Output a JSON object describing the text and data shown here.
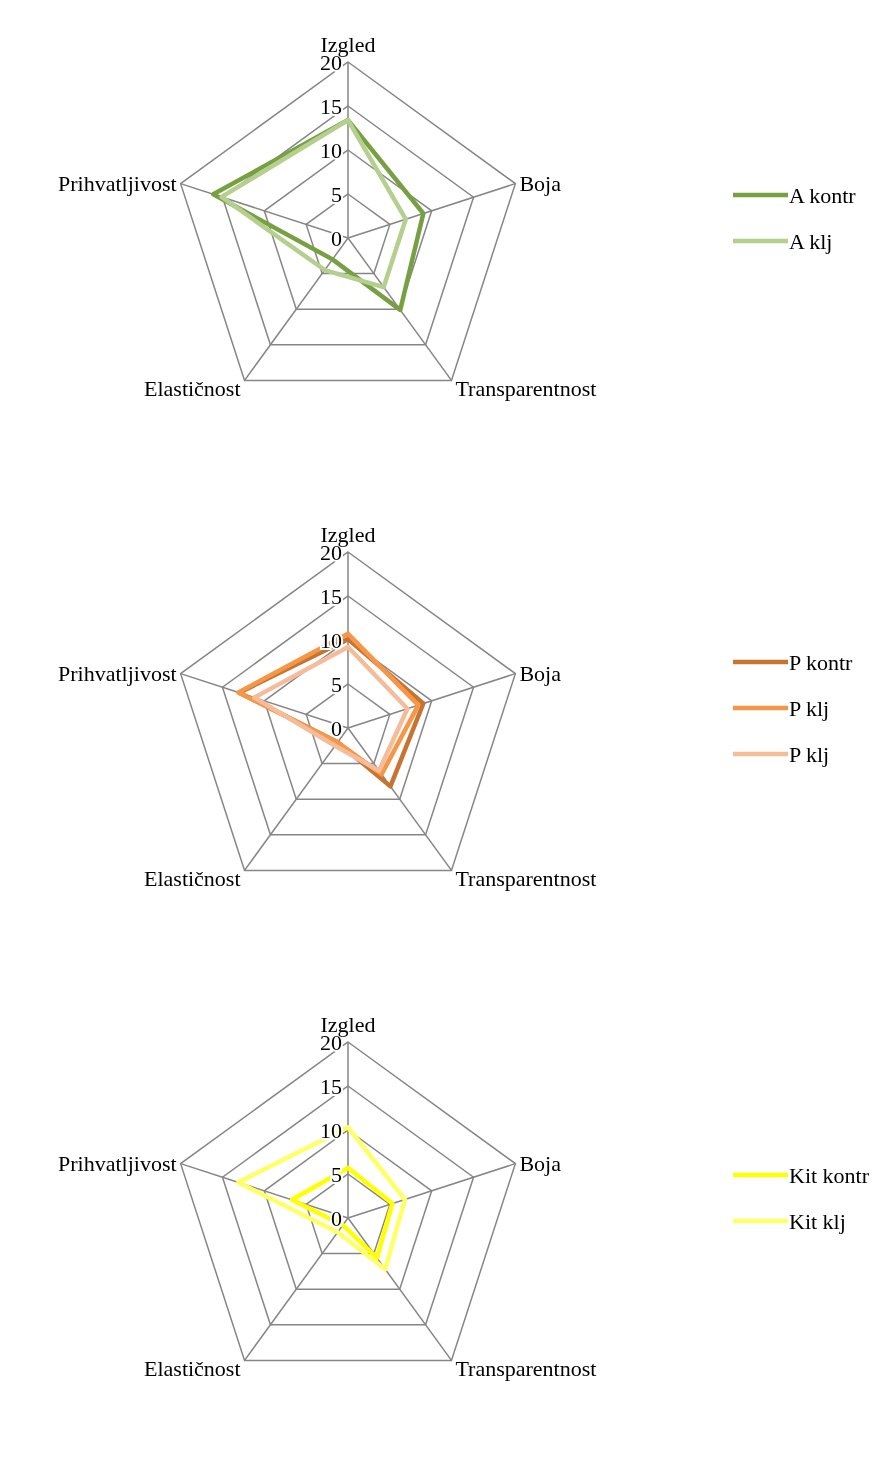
{
  "chart_data": [
    {
      "type": "radar",
      "categories": [
        "Izgled",
        "Boja",
        "Transparentnost",
        "Elastičnost",
        "Prihvatljivost"
      ],
      "ylim": [
        0,
        20
      ],
      "yticks": [
        0,
        5,
        10,
        15,
        20
      ],
      "grid": true,
      "legend": "right",
      "series": [
        {
          "name": "A kontr",
          "color": "#77a043",
          "values": [
            13.4,
            9,
            10.1,
            3,
            16.1
          ]
        },
        {
          "name": "A klj",
          "color": "#b5cf8e",
          "values": [
            13.4,
            6.9,
            6.9,
            4.5,
            15.1
          ]
        }
      ]
    },
    {
      "type": "radar",
      "categories": [
        "Izgled",
        "Boja",
        "Transparentnost",
        "Elastičnost",
        "Prihvatljivost"
      ],
      "ylim": [
        0,
        20
      ],
      "yticks": [
        0,
        5,
        10,
        15,
        20
      ],
      "grid": true,
      "legend": "right",
      "series": [
        {
          "name": "P kontr",
          "color": "#c77332",
          "values": [
            10.1,
            9,
            8.2,
            2,
            13
          ]
        },
        {
          "name": "P klj",
          "color": "#f79646",
          "values": [
            10.7,
            8.4,
            6.5,
            2,
            13.1
          ]
        },
        {
          "name": "P klj",
          "color": "#f5bc9a",
          "values": [
            9.2,
            7.1,
            6,
            2.5,
            11.2
          ]
        }
      ]
    },
    {
      "type": "radar",
      "categories": [
        "Izgled",
        "Boja",
        "Transparentnost",
        "Elastičnost",
        "Prihvatljivost"
      ],
      "ylim": [
        0,
        20
      ],
      "yticks": [
        0,
        5,
        10,
        15,
        20
      ],
      "grid": true,
      "legend": "right",
      "series": [
        {
          "name": "Kit kontr",
          "color": "#ffff00",
          "values": [
            5.7,
            5.3,
            5.6,
            1,
            6.7
          ]
        },
        {
          "name": "Kit klj",
          "color": "#ffff66",
          "values": [
            10.3,
            6.8,
            7.2,
            2,
            13.1
          ]
        }
      ]
    }
  ]
}
